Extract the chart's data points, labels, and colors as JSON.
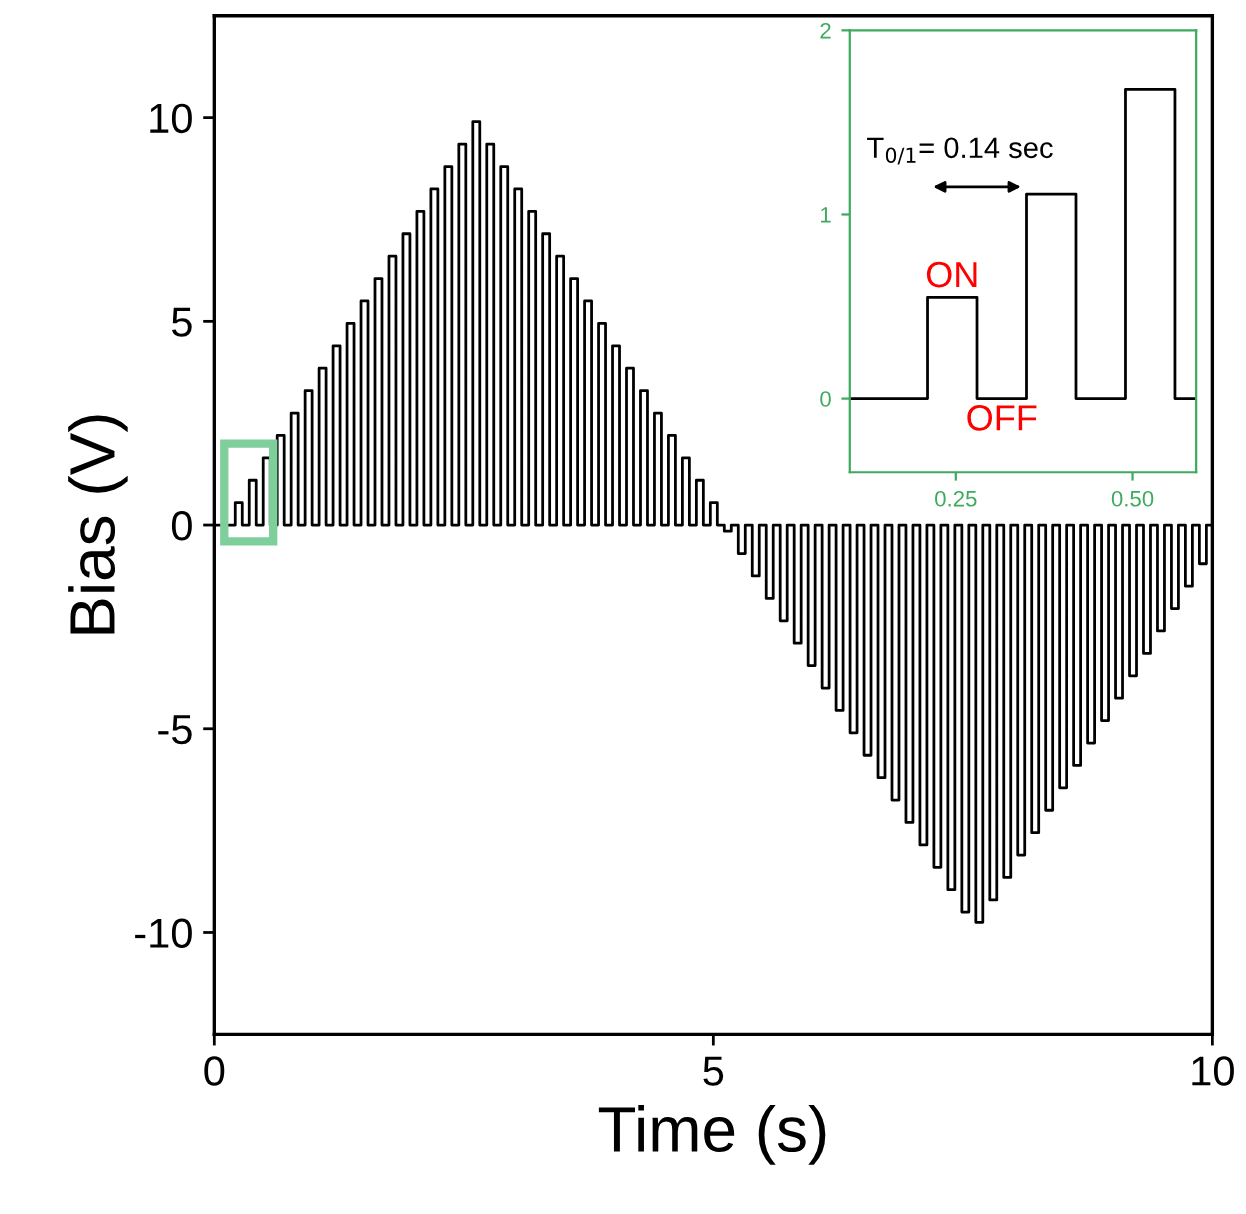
{
  "chart_data": [
    {
      "type": "step",
      "xlabel": "Time (s)",
      "ylabel": "Bias (V)",
      "xlim": [
        0,
        10
      ],
      "ylim": [
        -12.5,
        12.5
      ],
      "xticks": [
        0,
        5,
        10
      ],
      "yticks": [
        -10,
        -5,
        0,
        5,
        10
      ],
      "grid": false,
      "legend": false,
      "series": [
        {
          "color": "#000000",
          "x": [
            0,
            0.21,
            0.28,
            0.35,
            0.42,
            0.49,
            0.56,
            0.63,
            0.7,
            0.77,
            0.84,
            0.91,
            0.98,
            1.05,
            1.12,
            1.19,
            1.26,
            1.33,
            1.4,
            1.47,
            1.54,
            1.61,
            1.68,
            1.75,
            1.82,
            1.89,
            1.96,
            2.03,
            2.1,
            2.17,
            2.24,
            2.31,
            2.38,
            2.45,
            2.52,
            2.59,
            2.66,
            2.73,
            2.8,
            2.87,
            2.94,
            3.01,
            3.08,
            3.15,
            3.22,
            3.29,
            3.36,
            3.43,
            3.5,
            3.57,
            3.64,
            3.71,
            3.78,
            3.85,
            3.92,
            3.99,
            4.06,
            4.13,
            4.2,
            4.27,
            4.34,
            4.41,
            4.48,
            4.55,
            4.62,
            4.69,
            4.76,
            4.83,
            4.9,
            4.97,
            5.04,
            5.11,
            5.18,
            5.25,
            5.32,
            5.39,
            5.46,
            5.53,
            5.6,
            5.67,
            5.74,
            5.81,
            5.88,
            5.95,
            6.02,
            6.09,
            6.16,
            6.23,
            6.3,
            6.37,
            6.44,
            6.51,
            6.58,
            6.65,
            6.72,
            6.79,
            6.86,
            6.93,
            7.0,
            7.07,
            7.14,
            7.21,
            7.28,
            7.35,
            7.42,
            7.49,
            7.56,
            7.63,
            7.7,
            7.77,
            7.84,
            7.91,
            7.98,
            8.05,
            8.12,
            8.19,
            8.26,
            8.33,
            8.4,
            8.47,
            8.54,
            8.61,
            8.68,
            8.75,
            8.82,
            8.89,
            8.96,
            9.03,
            9.1,
            9.17,
            9.24,
            9.31,
            9.38,
            9.45,
            9.52,
            9.59,
            9.66,
            9.73,
            9.8,
            9.87,
            9.94,
            10
          ],
          "values": [
            0,
            0.55,
            0,
            1.1,
            0,
            1.65,
            0,
            2.2,
            0,
            2.75,
            0,
            3.3,
            0,
            3.85,
            0,
            4.4,
            0,
            4.95,
            0,
            5.5,
            0,
            6.05,
            0,
            6.6,
            0,
            7.15,
            0,
            7.7,
            0,
            8.25,
            0,
            8.8,
            0,
            9.35,
            0,
            9.9,
            0,
            9.35,
            0,
            8.8,
            0,
            8.25,
            0,
            7.7,
            0,
            7.15,
            0,
            6.6,
            0,
            6.05,
            0,
            5.5,
            0,
            4.95,
            0,
            4.4,
            0,
            3.85,
            0,
            3.3,
            0,
            2.75,
            0,
            2.2,
            0,
            1.65,
            0,
            1.1,
            0,
            0.55,
            0,
            -0.15,
            0,
            -0.7,
            0,
            -1.25,
            0,
            -1.8,
            0,
            -2.35,
            0,
            -2.9,
            0,
            -3.45,
            0,
            -4.0,
            0,
            -4.55,
            0,
            -5.1,
            0,
            -5.65,
            0,
            -6.2,
            0,
            -6.75,
            0,
            -7.3,
            0,
            -7.85,
            0,
            -8.4,
            0,
            -8.95,
            0,
            -9.5,
            0,
            -9.75,
            0,
            -9.2,
            0,
            -8.65,
            0,
            -8.1,
            0,
            -7.55,
            0,
            -7.0,
            0,
            -6.45,
            0,
            -5.9,
            0,
            -5.35,
            0,
            -4.8,
            0,
            -4.25,
            0,
            -3.7,
            0,
            -3.15,
            0,
            -2.6,
            0,
            -2.05,
            0,
            -1.5,
            0,
            -0.95,
            0,
            0
          ]
        }
      ]
    },
    {
      "type": "step",
      "xlim": [
        0.1,
        0.59
      ],
      "ylim": [
        -0.4,
        2
      ],
      "xticks": [
        0.25,
        {
          "value": 0.5,
          "label": "0.50"
        }
      ],
      "yticks": [
        0,
        1,
        2
      ],
      "grid": false,
      "legend": false,
      "series": [
        {
          "color": "#000000",
          "x": [
            0.1,
            0.21,
            0.28,
            0.35,
            0.42,
            0.49,
            0.56,
            0.59
          ],
          "values": [
            0,
            0.55,
            0,
            1.11,
            0,
            1.68,
            0,
            0
          ]
        }
      ],
      "annotations": [
        "T$_{0/1}$= 0.14 sec",
        "ON",
        "OFF"
      ]
    }
  ]
}
